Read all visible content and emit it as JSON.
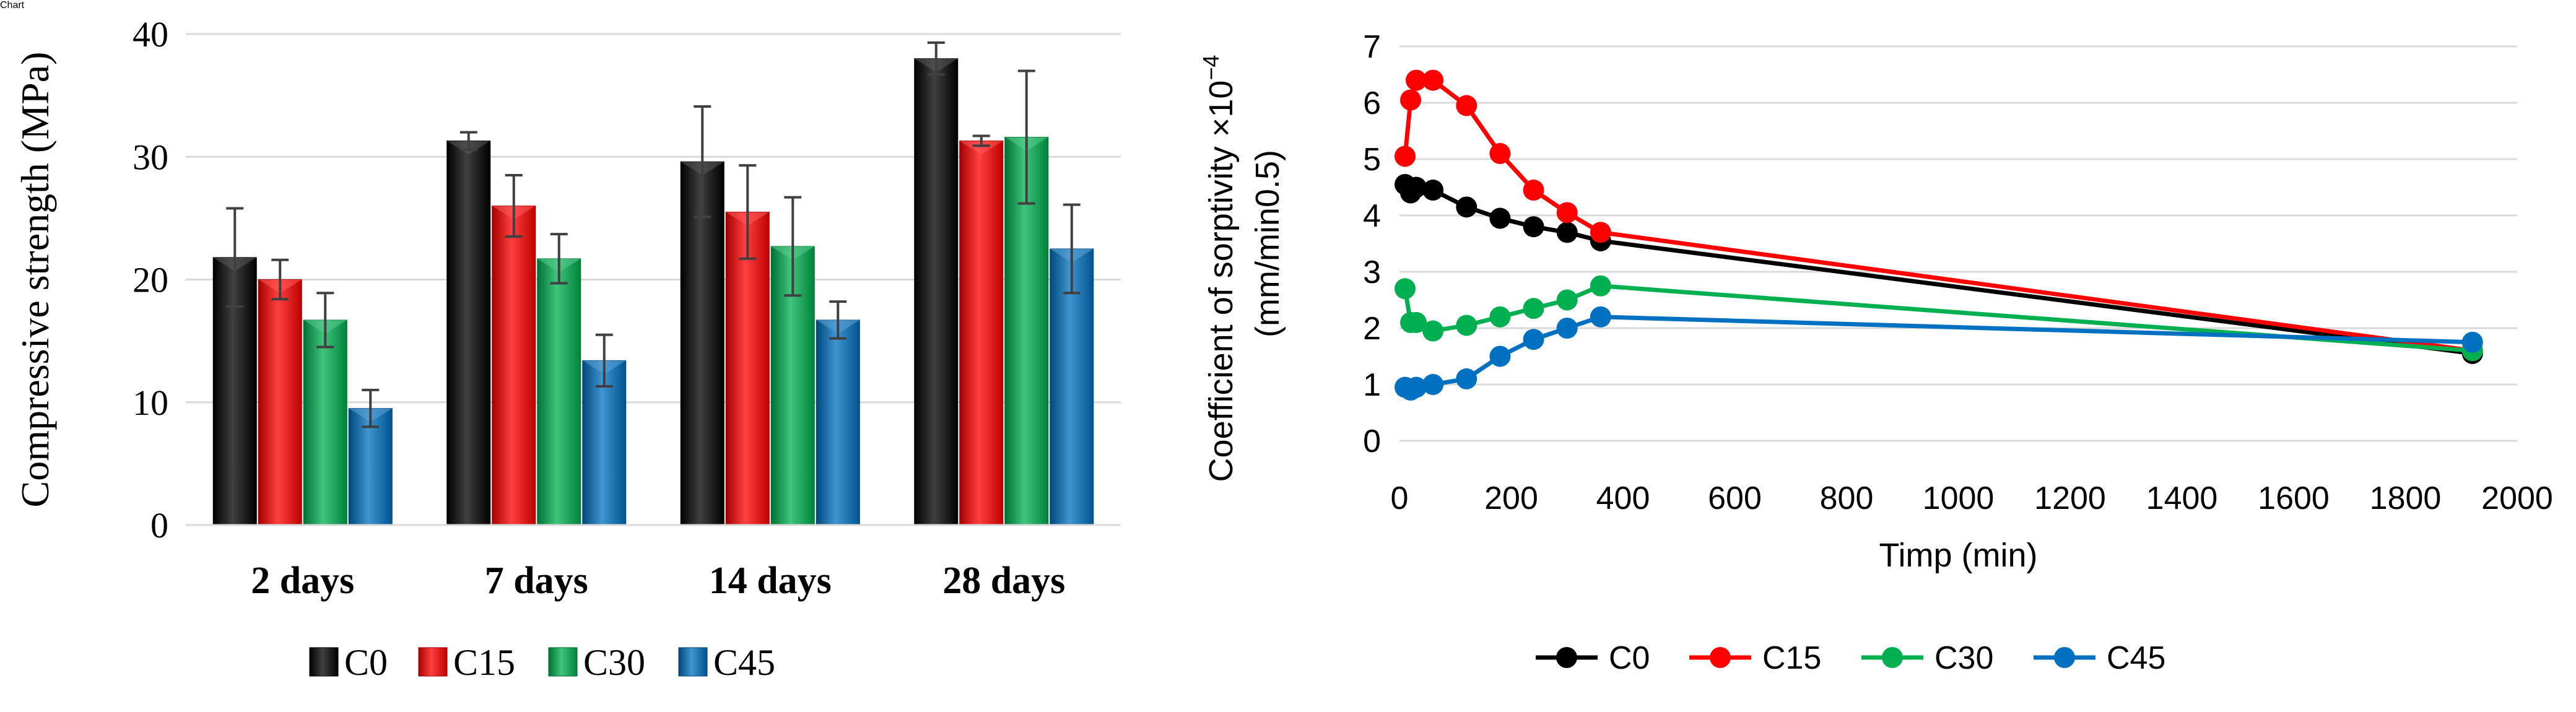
{
  "chart_data": [
    {
      "type": "bar",
      "title": "",
      "xlabel": "",
      "ylabel": "Compressive strength (MPa)",
      "ylim": [
        0,
        40
      ],
      "yticks": [
        0,
        10,
        20,
        30,
        40
      ],
      "grid": true,
      "categories": [
        "2 days",
        "7 days",
        "14 days",
        "28 days"
      ],
      "series": [
        {
          "name": "C0",
          "color": "#000000",
          "values": [
            21.8,
            31.3,
            29.6,
            38.0
          ],
          "errors": [
            4.0,
            0.7,
            4.5,
            1.3
          ]
        },
        {
          "name": "C15",
          "color": "#ff0000",
          "values": [
            20.0,
            26.0,
            25.5,
            31.3
          ],
          "errors": [
            1.6,
            2.5,
            3.8,
            0.4
          ]
        },
        {
          "name": "C30",
          "color": "#00b050",
          "values": [
            16.7,
            21.7,
            22.7,
            31.6
          ],
          "errors": [
            2.2,
            2.0,
            4.0,
            5.4
          ]
        },
        {
          "name": "C45",
          "color": "#0070c0",
          "values": [
            9.5,
            13.4,
            16.7,
            22.5
          ],
          "errors": [
            1.5,
            2.1,
            1.5,
            3.6
          ]
        }
      ],
      "legend_position": "bottom"
    },
    {
      "type": "line",
      "title": "",
      "xlabel": "Timp (min)",
      "ylabel_line1": "Coefficient of sorptivity ×10",
      "ylabel_exp": "−4",
      "ylabel_line2": "(mm/min0.5)",
      "xlim": [
        0,
        2000
      ],
      "ylim": [
        0,
        7
      ],
      "xticks": [
        0,
        200,
        400,
        600,
        800,
        1000,
        1200,
        1400,
        1600,
        1800,
        2000
      ],
      "yticks": [
        0,
        1,
        2,
        3,
        4,
        5,
        6,
        7
      ],
      "grid": true,
      "series": [
        {
          "name": "C0",
          "color": "#000000",
          "x": [
            10,
            20,
            30,
            60,
            120,
            180,
            240,
            300,
            360,
            1920
          ],
          "y": [
            4.55,
            4.4,
            4.5,
            4.45,
            4.15,
            3.95,
            3.8,
            3.7,
            3.55,
            1.55
          ]
        },
        {
          "name": "C15",
          "color": "#ff0000",
          "x": [
            10,
            20,
            30,
            60,
            120,
            180,
            240,
            300,
            360,
            1920
          ],
          "y": [
            5.05,
            6.05,
            6.4,
            6.4,
            5.95,
            5.1,
            4.45,
            4.05,
            3.7,
            1.6
          ]
        },
        {
          "name": "C30",
          "color": "#00b050",
          "x": [
            10,
            20,
            30,
            60,
            120,
            180,
            240,
            300,
            360,
            1920
          ],
          "y": [
            2.7,
            2.1,
            2.1,
            1.95,
            2.05,
            2.2,
            2.35,
            2.5,
            2.75,
            1.6
          ]
        },
        {
          "name": "C45",
          "color": "#0070c0",
          "x": [
            10,
            20,
            30,
            60,
            120,
            180,
            240,
            300,
            360,
            1920
          ],
          "y": [
            0.95,
            0.9,
            0.95,
            1.0,
            1.1,
            1.5,
            1.8,
            2.0,
            2.2,
            1.75
          ]
        }
      ],
      "legend_position": "bottom"
    }
  ]
}
